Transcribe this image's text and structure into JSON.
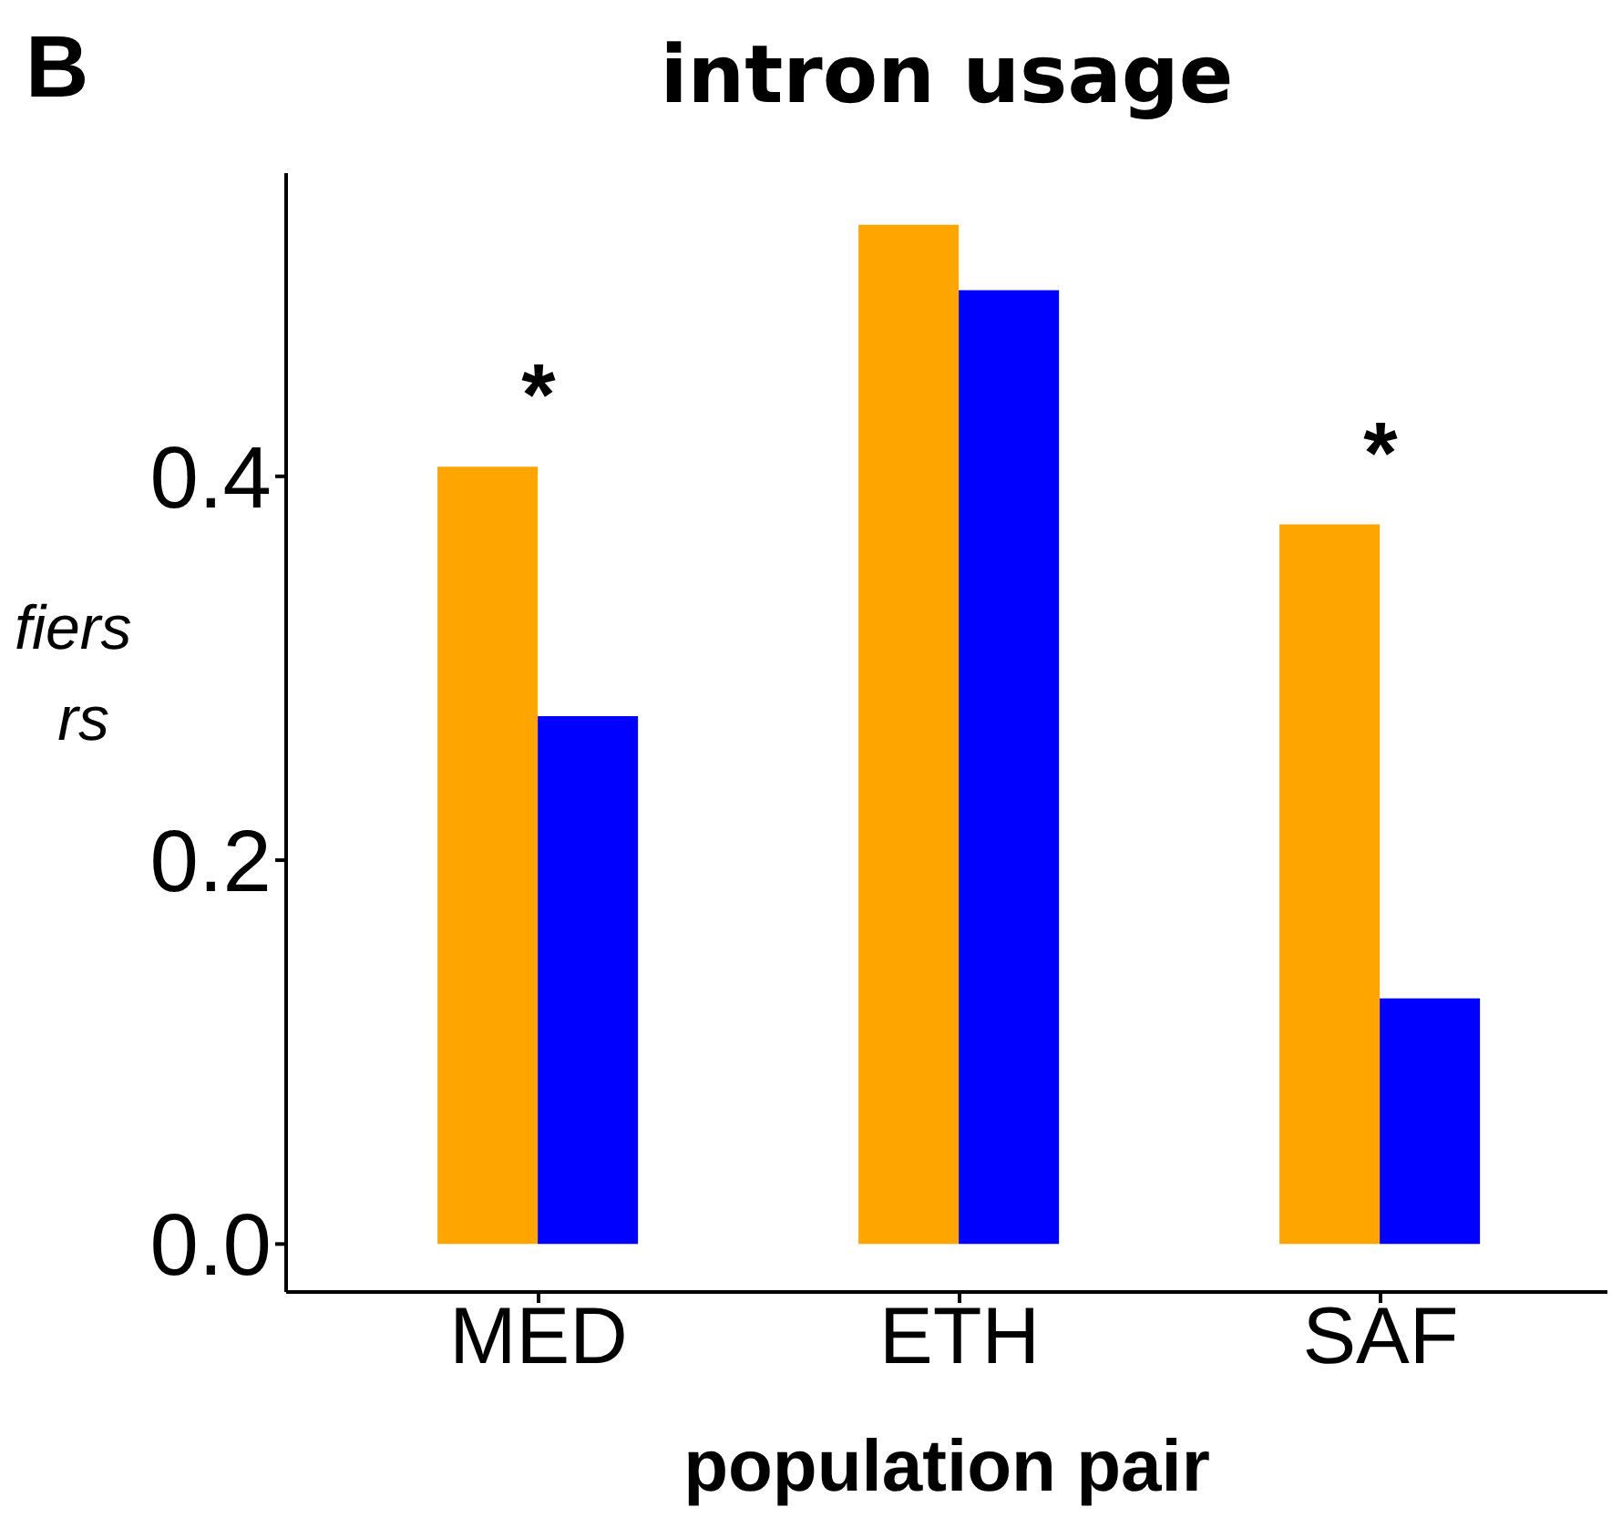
{
  "chart_data": {
    "type": "bar",
    "title": "intron usage",
    "xlabel": "population pair",
    "ylabel": "fiers\nrs",
    "categories": [
      "MED",
      "ETH",
      "SAF"
    ],
    "series": [
      {
        "color": "#ffa500",
        "values": [
          0.405,
          0.531,
          0.375
        ]
      },
      {
        "color": "#0000ff",
        "values": [
          0.275,
          0.497,
          0.128
        ]
      }
    ],
    "ylim": [
      -0.025,
      0.558
    ],
    "yticks": [
      {
        "value": 0,
        "label": "0.0"
      },
      {
        "value": 0.2,
        "label": "0.2"
      },
      {
        "value": 0.4,
        "label": "0.4"
      }
    ],
    "annotations": [
      "B",
      {
        "text": "*",
        "x": "MED",
        "y": 0.405
      },
      {
        "text": "*",
        "x": "SAF",
        "y": 0.375
      }
    ]
  }
}
